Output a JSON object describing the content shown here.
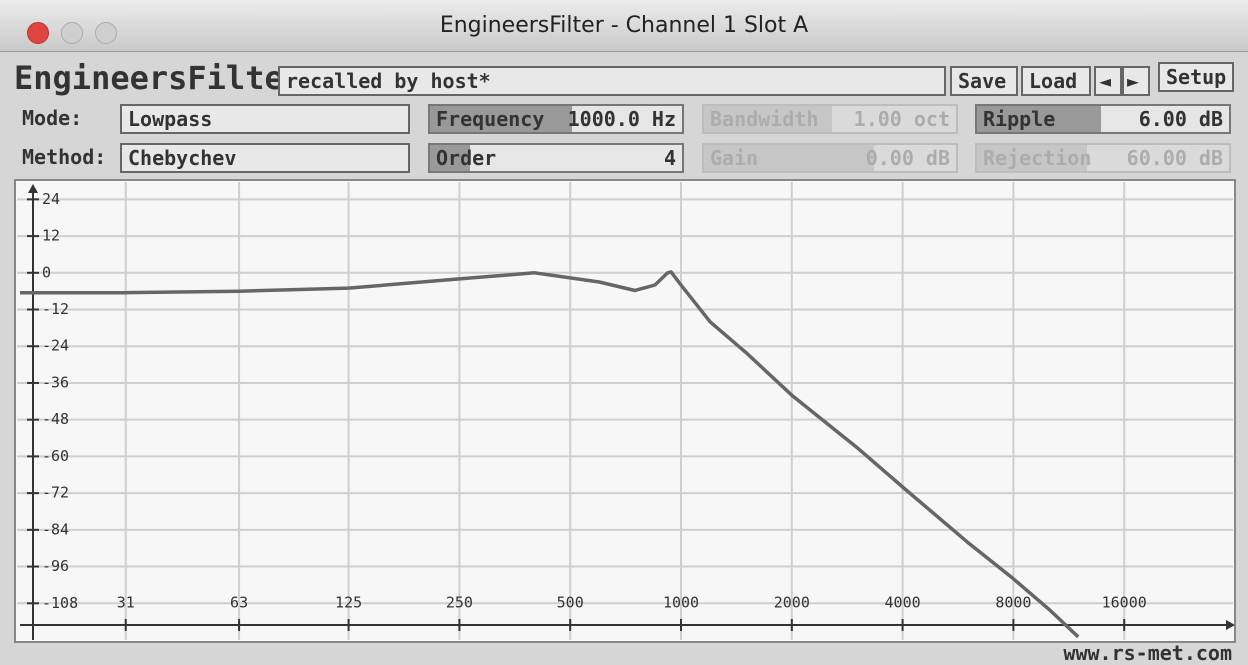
{
  "window": {
    "title": "EngineersFilter - Channel 1 Slot A"
  },
  "toolbar": {
    "logo": "EngineersFilter",
    "preset": "recalled by host*",
    "save": "Save",
    "load": "Load",
    "prev": "◄",
    "next": "►",
    "setup": "Setup"
  },
  "controls": {
    "mode_label": "Mode:",
    "mode": "Lowpass",
    "method_label": "Method:",
    "method": "Chebychev",
    "frequency": {
      "label": "Frequency",
      "value": "1000.0 Hz"
    },
    "order": {
      "label": "Order",
      "value": "4"
    },
    "bandwidth": {
      "label": "Bandwidth",
      "value": "1.00 oct"
    },
    "gain": {
      "label": "Gain",
      "value": "0.00 dB"
    },
    "ripple": {
      "label": "Ripple",
      "value": "6.00 dB"
    },
    "rejection": {
      "label": "Rejection",
      "value": "60.00 dB"
    }
  },
  "footer": "www.rs-met.com",
  "chart_data": {
    "type": "line",
    "log_x": true,
    "grid": true,
    "color": "#666666",
    "x": [
      16,
      31,
      63,
      125,
      250,
      400,
      600,
      750,
      850,
      920,
      940,
      1000,
      1200,
      1500,
      2000,
      3000,
      4000,
      6000,
      8000,
      10000,
      12000
    ],
    "values": [
      -6.5,
      -6.5,
      -6,
      -5,
      -2,
      0,
      -3,
      -5.8,
      -4,
      0,
      0.3,
      -4,
      -16,
      -26,
      -40,
      -57,
      -70,
      -88,
      -100,
      -110,
      -119
    ],
    "xlim": [
      16,
      32000
    ],
    "xticks": [
      31,
      63,
      125,
      250,
      500,
      1000,
      2000,
      4000,
      8000,
      16000
    ],
    "ylim": [
      -120,
      30
    ],
    "yticks": [
      24,
      12,
      0,
      -12,
      -24,
      -36,
      -48,
      -60,
      -72,
      -84,
      -96,
      -108
    ]
  }
}
